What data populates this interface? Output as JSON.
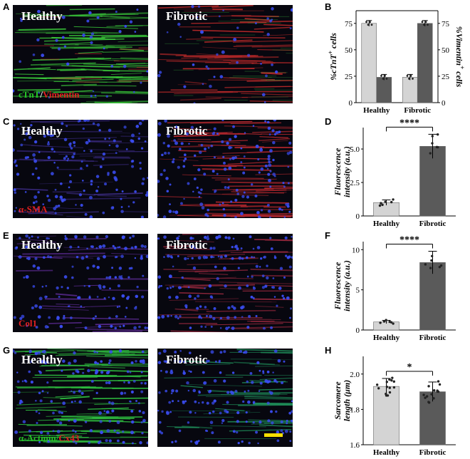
{
  "panels": [
    {
      "letter": "A",
      "type": "image-pair",
      "left_label": "Healthy",
      "right_label": "Fibrotic",
      "stain": [
        "cTnT",
        "/",
        "Vimentin"
      ],
      "stain_colors": [
        "#26c526",
        "#ffffff",
        "#e02020"
      ],
      "bg_style": "green-red"
    },
    {
      "letter": "C",
      "type": "image-pair",
      "left_label": "Healthy",
      "right_label": "Fibrotic",
      "stain": [
        "α-SMA"
      ],
      "stain_colors": [
        "#e02020"
      ],
      "bg_style": "blue-red"
    },
    {
      "letter": "E",
      "type": "image-pair",
      "left_label": "Healthy",
      "right_label": "Fibrotic",
      "stain": [
        "Col1"
      ],
      "stain_colors": [
        "#e02020"
      ],
      "bg_style": "blue-red-rows"
    },
    {
      "letter": "G",
      "type": "image-pair",
      "left_label": "Healthy",
      "right_label": "Fibrotic",
      "stain": [
        "α-Actinin",
        "/",
        "Cx43"
      ],
      "stain_colors": [
        "#26c526",
        "#26c526",
        "#e02020"
      ],
      "bg_style": "green-blue"
    }
  ],
  "chart_data": [
    {
      "letter": "B",
      "type": "bar",
      "categories": [
        "Healthy",
        "Fibrotic"
      ],
      "series": [
        {
          "name": "%cTnT+ cells",
          "values": [
            75,
            24
          ],
          "color": "#d4d4d4",
          "axis": "left"
        },
        {
          "name": "%Vimentin+ cells",
          "values": [
            24,
            75
          ],
          "color": "#5a5a5a",
          "axis": "right"
        }
      ],
      "ylabel": "%cTnT",
      "ylabel_sup": "+",
      "ylabel_suffix": " cells",
      "y2label": "%Vimentin",
      "y2label_sup": "+",
      "y2label_suffix": " cells",
      "ylim": [
        0,
        87
      ],
      "yticks": [
        "0",
        "25",
        "50",
        "75"
      ]
    },
    {
      "letter": "D",
      "type": "bar",
      "categories": [
        "Healthy",
        "Fibrotic"
      ],
      "values": [
        1.0,
        5.2
      ],
      "errors": [
        0.2,
        0.9
      ],
      "ylabel_line1": "Fluorescence",
      "ylabel_line2": "intensity (a.u.)",
      "ylim": [
        0,
        6.6
      ],
      "yticks": [
        "0",
        "2.5",
        "5.0"
      ],
      "significance": "****"
    },
    {
      "letter": "F",
      "type": "bar",
      "categories": [
        "Healthy",
        "Fibrotic"
      ],
      "values": [
        1.0,
        8.4
      ],
      "errors": [
        0.2,
        1.4
      ],
      "ylabel_line1": "Fluorescence",
      "ylabel_line2": "intensity (a.u.)",
      "ylim": [
        0,
        11
      ],
      "yticks": [
        "0",
        "5",
        "10"
      ],
      "significance": "****"
    },
    {
      "letter": "H",
      "type": "bar",
      "categories": [
        "Healthy",
        "Fibrotic"
      ],
      "values": [
        1.93,
        1.9
      ],
      "errors": [
        0.045,
        0.055
      ],
      "ylabel_line1": "Sarcomere",
      "ylabel_line2": "length (μm)",
      "ylim": [
        1.6,
        2.1
      ],
      "yticks": [
        "1.6",
        "1.8",
        "2.0"
      ],
      "significance": "*"
    }
  ]
}
